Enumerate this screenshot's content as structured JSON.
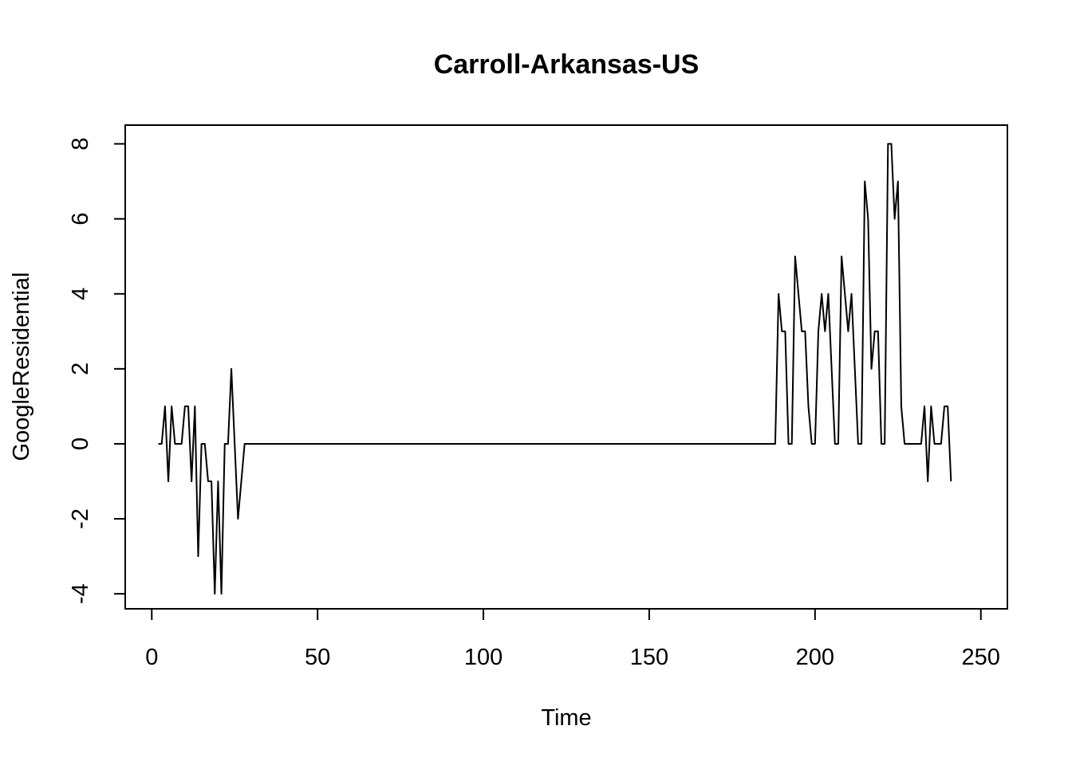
{
  "chart_data": {
    "type": "line",
    "title": "Carroll-Arkansas-US",
    "xlabel": "Time",
    "ylabel": "GoogleResidential",
    "xlim": [
      -8,
      258
    ],
    "ylim": [
      -4.4,
      8.5
    ],
    "x_ticks": [
      0,
      50,
      100,
      150,
      200,
      250
    ],
    "y_ticks": [
      -4,
      -2,
      0,
      2,
      4,
      6,
      8
    ],
    "grid": false,
    "legend": "none",
    "line_color": "#000000",
    "series": [
      {
        "x_start": 2,
        "values": [
          0,
          0,
          1,
          -1,
          1,
          0,
          0,
          0,
          1,
          1,
          -1,
          1,
          -3,
          0,
          0,
          -1,
          -1,
          -4,
          -1,
          -4,
          0,
          0,
          2,
          0,
          -2,
          -1,
          0,
          0,
          0,
          0,
          0,
          0,
          0,
          0,
          0,
          0,
          0,
          0,
          0,
          0,
          0,
          0,
          0,
          0,
          0,
          0,
          0,
          0,
          0,
          0,
          0,
          0,
          0,
          0,
          0,
          0,
          0,
          0,
          0,
          0,
          0,
          0,
          0,
          0,
          0,
          0,
          0,
          0,
          0,
          0,
          0,
          0,
          0,
          0,
          0,
          0,
          0,
          0,
          0,
          0,
          0,
          0,
          0,
          0,
          0,
          0,
          0,
          0,
          0,
          0,
          0,
          0,
          0,
          0,
          0,
          0,
          0,
          0,
          0,
          0,
          0,
          0,
          0,
          0,
          0,
          0,
          0,
          0,
          0,
          0,
          0,
          0,
          0,
          0,
          0,
          0,
          0,
          0,
          0,
          0,
          0,
          0,
          0,
          0,
          0,
          0,
          0,
          0,
          0,
          0,
          0,
          0,
          0,
          0,
          0,
          0,
          0,
          0,
          0,
          0,
          0,
          0,
          0,
          0,
          0,
          0,
          0,
          0,
          0,
          0,
          0,
          0,
          0,
          0,
          0,
          0,
          0,
          0,
          0,
          0,
          0,
          0,
          0,
          0,
          0,
          0,
          0,
          0,
          0,
          0,
          0,
          0,
          0,
          0,
          0,
          0,
          0,
          0,
          0,
          0,
          0,
          0,
          0,
          0,
          0,
          0,
          0,
          4,
          3,
          3,
          0,
          0,
          5,
          4,
          3,
          3,
          1,
          0,
          0,
          3,
          4,
          3,
          4,
          2,
          0,
          0,
          5,
          4,
          3,
          4,
          2,
          0,
          0,
          7,
          6,
          2,
          3,
          3,
          0,
          0,
          8,
          8,
          6,
          7,
          1,
          0,
          0,
          0,
          0,
          0,
          0,
          1,
          -1,
          1,
          0,
          0,
          0,
          1,
          1,
          -1
        ]
      }
    ]
  }
}
